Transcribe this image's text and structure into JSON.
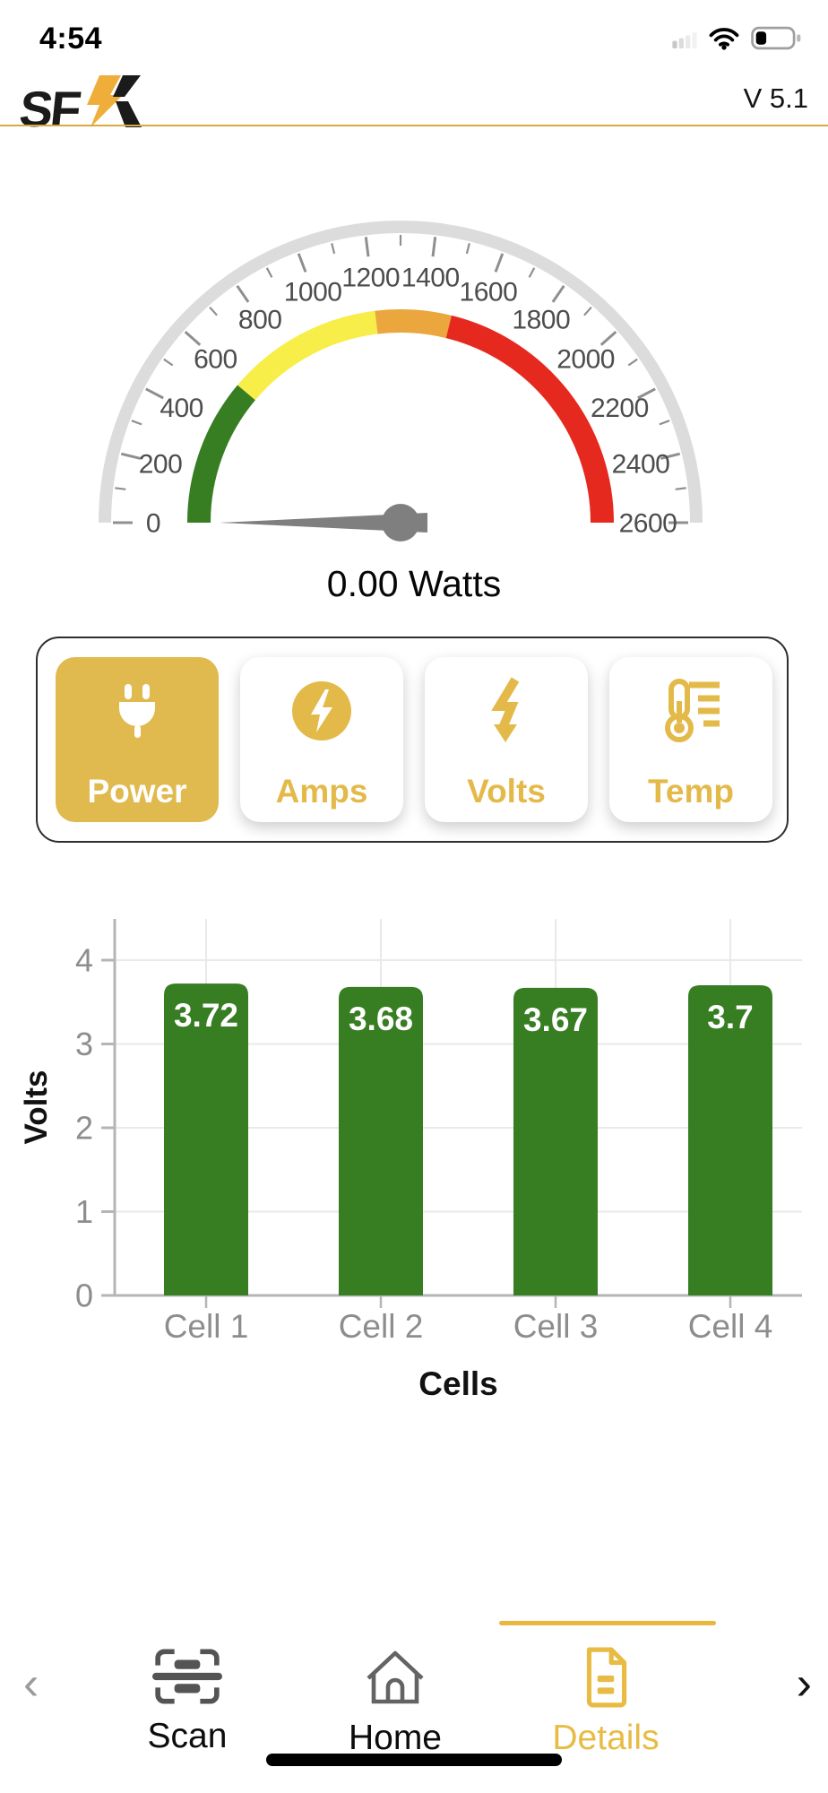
{
  "status_bar": {
    "time": "4:54"
  },
  "header": {
    "logo_sf": "SF",
    "version": "V 5.1"
  },
  "gauge": {
    "min": 0,
    "max": 2600,
    "major_step": 200,
    "minor_step": 100,
    "value": 0,
    "unit_label": "0.00 Watts",
    "segments": [
      {
        "from": 0,
        "to": 580,
        "color": "#377d22"
      },
      {
        "from": 580,
        "to": 1200,
        "color": "#f8ee49"
      },
      {
        "from": 1200,
        "to": 1500,
        "color": "#eca63e"
      },
      {
        "from": 1500,
        "to": 2600,
        "color": "#e6291f"
      }
    ],
    "band_color": "#dcdcdc",
    "tick_color": "#8f8f8f",
    "label_color": "#4d4d4d",
    "needle_color": "#7f7f7f"
  },
  "metric_tabs": {
    "accent_color": "#e3ba4a",
    "items": [
      {
        "label": "Power",
        "icon": "plug-icon",
        "selected": true
      },
      {
        "label": "Amps",
        "icon": "bolt-circle-icon",
        "selected": false
      },
      {
        "label": "Volts",
        "icon": "bolt-arrow-icon",
        "selected": false
      },
      {
        "label": "Temp",
        "icon": "thermometer-icon",
        "selected": false
      }
    ]
  },
  "chart_data": {
    "type": "bar",
    "categories": [
      "Cell 1",
      "Cell 2",
      "Cell 3",
      "Cell 4"
    ],
    "values": [
      3.72,
      3.68,
      3.67,
      3.7
    ],
    "bar_labels": [
      "3.72",
      "3.68",
      "3.67",
      "3.7"
    ],
    "title": "",
    "xlabel": "Cells",
    "ylabel": "Volts",
    "ylim": [
      0,
      4.5
    ],
    "yticks": [
      0,
      1,
      2,
      3,
      4
    ],
    "grid": true,
    "bar_color": "#377d22",
    "value_label_color": "#ffffff",
    "axis_color": "#b5b5b5",
    "grid_color": "#e9e9e9",
    "tick_label_color": "#8d8d8d"
  },
  "bottom_nav": {
    "active_color": "#e8bb43",
    "prev_arrow": "‹",
    "next_arrow": "›",
    "items": [
      {
        "label": "Scan",
        "icon": "scan-icon",
        "active": false
      },
      {
        "label": "Home",
        "icon": "home-icon",
        "active": false
      },
      {
        "label": "Details",
        "icon": "document-icon",
        "active": true
      }
    ]
  }
}
